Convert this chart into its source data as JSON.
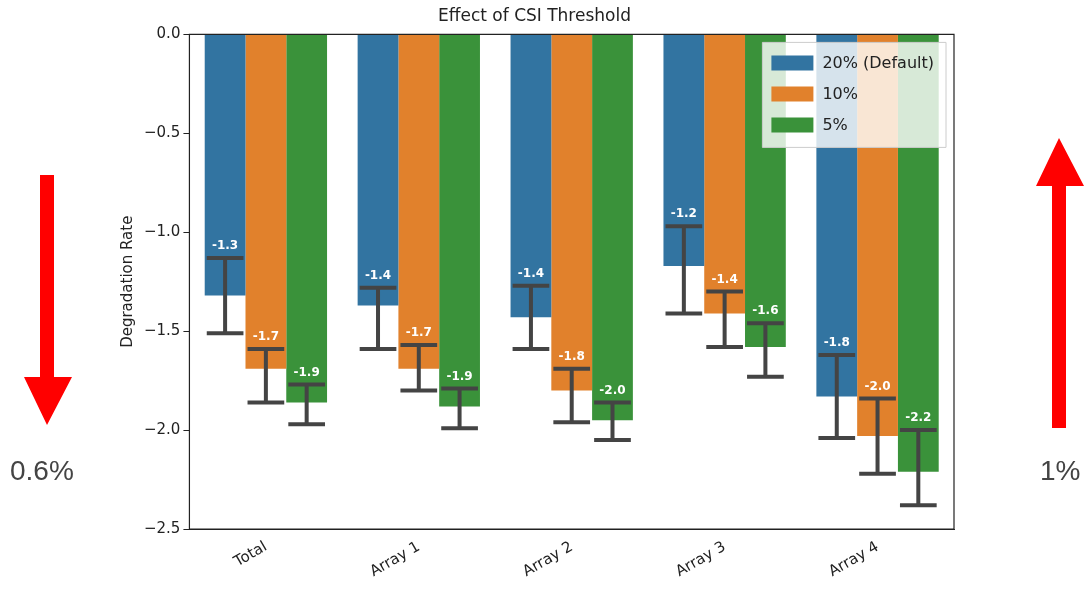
{
  "chart_data": {
    "type": "bar",
    "title": "Effect of CSI Threshold",
    "ylabel": "Degradation Rate",
    "categories": [
      "Total",
      "Array 1",
      "Array 2",
      "Array 3",
      "Array 4"
    ],
    "series": [
      {
        "name": "20% (Default)",
        "color": "#3274a1",
        "values": [
          -1.32,
          -1.37,
          -1.43,
          -1.17,
          -1.83
        ],
        "errors": [
          [
            -1.51,
            -1.13
          ],
          [
            -1.59,
            -1.28
          ],
          [
            -1.59,
            -1.27
          ],
          [
            -1.41,
            -0.97
          ],
          [
            -2.04,
            -1.62
          ]
        ],
        "value_labels": [
          "-1.3",
          "-1.4",
          "-1.4",
          "-1.2",
          "-1.8"
        ]
      },
      {
        "name": "10%",
        "color": "#e1812c",
        "values": [
          -1.69,
          -1.69,
          -1.8,
          -1.41,
          -2.03
        ],
        "errors": [
          [
            -1.86,
            -1.59
          ],
          [
            -1.8,
            -1.57
          ],
          [
            -1.96,
            -1.69
          ],
          [
            -1.58,
            -1.3
          ],
          [
            -2.22,
            -1.84
          ]
        ],
        "value_labels": [
          "-1.7",
          "-1.7",
          "-1.8",
          "-1.4",
          "-2.0"
        ]
      },
      {
        "name": "5%",
        "color": "#3a923a",
        "values": [
          -1.86,
          -1.88,
          -1.95,
          -1.58,
          -2.21
        ],
        "errors": [
          [
            -1.97,
            -1.77
          ],
          [
            -1.99,
            -1.79
          ],
          [
            -2.05,
            -1.86
          ],
          [
            -1.73,
            -1.46
          ],
          [
            -2.38,
            -2.0
          ]
        ],
        "value_labels": [
          "-1.9",
          "-1.9",
          "-2.0",
          "-1.6",
          "-2.2"
        ]
      }
    ],
    "ylim": [
      -2.5,
      0
    ],
    "yticks": [
      {
        "value": -2.5,
        "label": "−2.5"
      },
      {
        "value": -2.0,
        "label": "−2.0"
      },
      {
        "value": -1.5,
        "label": "−1.5"
      },
      {
        "value": -1.0,
        "label": "−1.0"
      },
      {
        "value": -0.5,
        "label": "−0.5"
      },
      {
        "value": 0,
        "label": "0.0"
      }
    ],
    "grid": false,
    "legend": "top right",
    "annotations": [
      "0.6%",
      "1%"
    ]
  }
}
